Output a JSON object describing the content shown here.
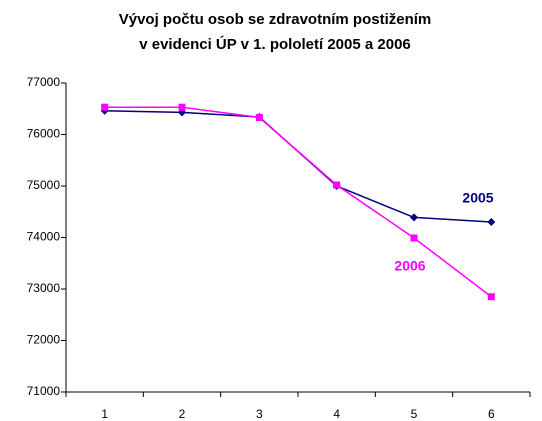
{
  "chart_data": {
    "type": "line",
    "title": [
      "Vývoj počtu osob se zdravotním postižením",
      "v evidenci ÚP v 1. pololetí 2005 a 2006"
    ],
    "categories": [
      "1",
      "2",
      "3",
      "4",
      "5",
      "6"
    ],
    "series": [
      {
        "name": "2005",
        "color": "#000080",
        "marker": "diamond",
        "values": [
          76460,
          76430,
          76340,
          75000,
          74390,
          74300
        ]
      },
      {
        "name": "2006",
        "color": "#ff00ff",
        "marker": "square",
        "values": [
          76530,
          76530,
          76330,
          75020,
          73990,
          72850
        ]
      }
    ],
    "ylim": [
      71000,
      77000
    ],
    "yticks": [
      71000,
      72000,
      73000,
      74000,
      75000,
      76000,
      77000
    ],
    "grid": false
  }
}
